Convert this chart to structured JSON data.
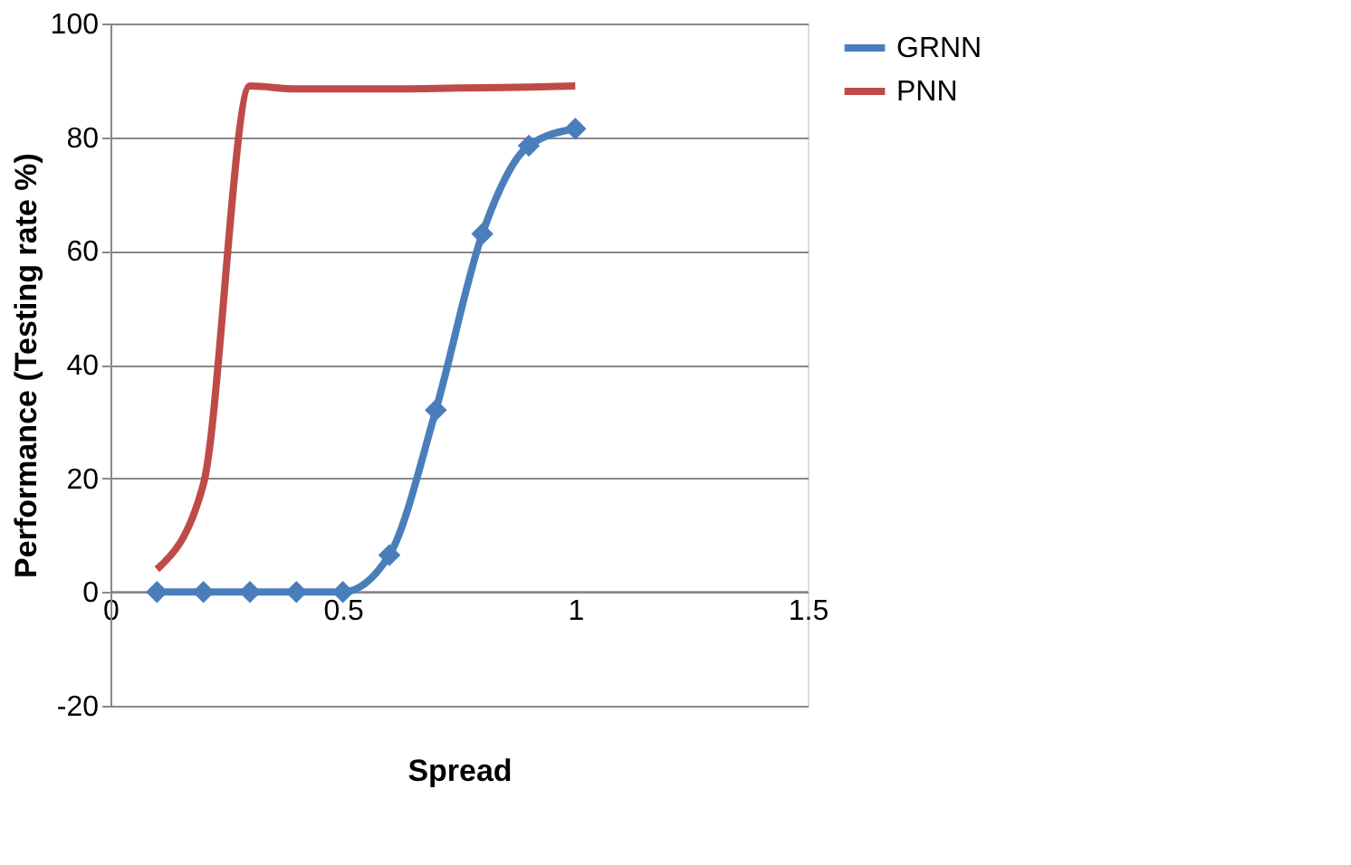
{
  "chart_data": {
    "type": "line",
    "xlabel": "Spread",
    "ylabel": "Performance (Testing rate %)",
    "xlim": [
      0,
      1.5
    ],
    "xticks": [
      0,
      0.5,
      1,
      1.5
    ],
    "ylim": [
      -20,
      100
    ],
    "yticks": [
      -20,
      0,
      20,
      40,
      60,
      80,
      100
    ],
    "grid": "y",
    "legend": "right",
    "line_style": "solid",
    "series": [
      {
        "name": "GRNN",
        "color": "#4a7ebb",
        "marker": "diamond",
        "x": [
          0.1,
          0.2,
          0.3,
          0.4,
          0.5,
          0.6,
          0.7,
          0.8,
          0.9,
          1.0
        ],
        "values": [
          0,
          0,
          0,
          0,
          0,
          6.5,
          32,
          63,
          78.5,
          81.5
        ]
      },
      {
        "name": "PNN",
        "color": "#be4b48",
        "marker": "none",
        "x": [
          0.1,
          0.2,
          0.3,
          0.4,
          0.5,
          0.6,
          0.7,
          0.8,
          0.9,
          1.0
        ],
        "values": [
          4,
          19,
          89,
          88.5,
          88.5,
          88.5,
          88.6,
          88.7,
          88.8,
          89
        ]
      }
    ]
  }
}
